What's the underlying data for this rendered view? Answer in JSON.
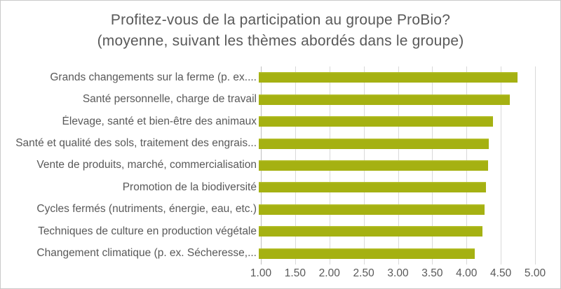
{
  "title": {
    "line1": "Profitez-vous de la participation au groupe ProBio?",
    "line2": "(moyenne, suivant les thèmes abordés dans le groupe)"
  },
  "chart_data": {
    "type": "bar",
    "orientation": "horizontal",
    "title": "Profitez-vous de la participation au groupe ProBio? (moyenne, suivant les thèmes abordés dans le groupe)",
    "categories": [
      "Grands changements sur la ferme (p. ex....",
      "Santé personnelle, charge de travail",
      "Élevage, santé et bien-être des animaux",
      "Santé et qualité des sols, traitement des engrais...",
      "Vente de produits, marché, commercialisation",
      "Promotion de la biodiversité",
      "Cycles fermés (nutriments, énergie, eau, etc.)",
      "Techniques de culture en production végétale",
      "Changement climatique (p. ex. Sécheresse,..."
    ],
    "values": [
      4.77,
      4.66,
      4.42,
      4.36,
      4.35,
      4.31,
      4.29,
      4.26,
      4.15
    ],
    "xlabel": "",
    "ylabel": "",
    "xlim": [
      1.0,
      5.0
    ],
    "xticks": [
      "1.00",
      "1.50",
      "2.00",
      "2.50",
      "3.00",
      "3.50",
      "4.00",
      "4.50",
      "5.00"
    ],
    "grid": true,
    "legend_position": "none"
  },
  "colors": {
    "bar": "#a5b112",
    "bar_highlight": "#bcc63c",
    "text": "#595959",
    "gridline": "#d9d9d9",
    "axis_line": "#bfbfbf",
    "frame_border": "#c9c9c9",
    "background": "#ffffff"
  }
}
